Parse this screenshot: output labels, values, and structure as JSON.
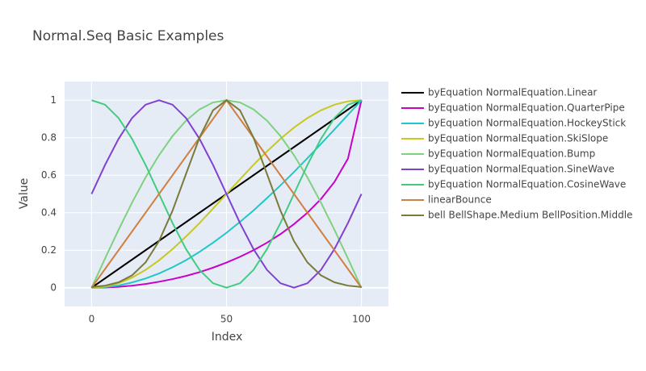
{
  "chart_data": {
    "type": "line",
    "title": "Normal.Seq Basic Examples",
    "x_label": "Index",
    "y_label": "Value",
    "x": [
      0,
      5,
      10,
      15,
      20,
      25,
      30,
      35,
      40,
      45,
      50,
      55,
      60,
      65,
      70,
      75,
      80,
      85,
      90,
      95,
      100
    ],
    "series": [
      {
        "name": "byEquation NormalEquation.Linear",
        "color": "#000000",
        "values": [
          0,
          0.05,
          0.1,
          0.15,
          0.2,
          0.25,
          0.3,
          0.35,
          0.4,
          0.45,
          0.5,
          0.55,
          0.6,
          0.65,
          0.7,
          0.75,
          0.8,
          0.85,
          0.9,
          0.95,
          1
        ]
      },
      {
        "name": "byEquation NormalEquation.QuarterPipe",
        "color": "#c800c8",
        "values": [
          0,
          0.001,
          0.005,
          0.011,
          0.02,
          0.032,
          0.046,
          0.063,
          0.083,
          0.107,
          0.134,
          0.165,
          0.2,
          0.24,
          0.286,
          0.339,
          0.4,
          0.473,
          0.564,
          0.688,
          1
        ]
      },
      {
        "name": "byEquation NormalEquation.HockeyStick",
        "color": "#1ec8c8",
        "values": [
          0,
          0.003,
          0.012,
          0.028,
          0.049,
          0.076,
          0.109,
          0.147,
          0.191,
          0.24,
          0.293,
          0.351,
          0.412,
          0.478,
          0.546,
          0.617,
          0.691,
          0.767,
          0.844,
          0.922,
          1
        ]
      },
      {
        "name": "byEquation NormalEquation.SkiSlope",
        "color": "#c8c81e",
        "values": [
          0,
          0.006,
          0.024,
          0.054,
          0.095,
          0.146,
          0.206,
          0.273,
          0.345,
          0.422,
          0.5,
          0.578,
          0.655,
          0.727,
          0.794,
          0.854,
          0.905,
          0.946,
          0.976,
          0.994,
          1
        ]
      },
      {
        "name": "byEquation NormalEquation.Bump",
        "color": "#7fd17f",
        "values": [
          0,
          0.156,
          0.309,
          0.454,
          0.588,
          0.707,
          0.809,
          0.891,
          0.951,
          0.988,
          1,
          0.988,
          0.951,
          0.891,
          0.809,
          0.707,
          0.588,
          0.454,
          0.309,
          0.156,
          0
        ]
      },
      {
        "name": "byEquation NormalEquation.SineWave",
        "color": "#8040d0",
        "values": [
          0.5,
          0.655,
          0.794,
          0.905,
          0.976,
          1,
          0.976,
          0.905,
          0.794,
          0.655,
          0.5,
          0.345,
          0.206,
          0.095,
          0.024,
          0,
          0.024,
          0.095,
          0.206,
          0.345,
          0.5
        ]
      },
      {
        "name": "byEquation NormalEquation.CosineWave",
        "color": "#40cc80",
        "values": [
          1,
          0.976,
          0.905,
          0.794,
          0.655,
          0.5,
          0.345,
          0.206,
          0.095,
          0.024,
          0,
          0.024,
          0.095,
          0.206,
          0.345,
          0.5,
          0.655,
          0.794,
          0.905,
          0.976,
          1
        ]
      },
      {
        "name": "linearBounce",
        "color": "#d08040",
        "values": [
          0,
          0.1,
          0.2,
          0.3,
          0.4,
          0.5,
          0.6,
          0.7,
          0.8,
          0.9,
          1,
          0.9,
          0.8,
          0.7,
          0.6,
          0.5,
          0.4,
          0.3,
          0.2,
          0.1,
          0
        ]
      },
      {
        "name": "bell BellShape.Medium BellPosition.Middle",
        "color": "#7a7a3a",
        "values": [
          0.004,
          0.011,
          0.029,
          0.066,
          0.135,
          0.249,
          0.411,
          0.607,
          0.801,
          0.946,
          1,
          0.946,
          0.801,
          0.607,
          0.411,
          0.249,
          0.135,
          0.066,
          0.029,
          0.011,
          0.004
        ]
      }
    ],
    "xlim": [
      -10,
      110
    ],
    "xticks": [
      0,
      50,
      100
    ],
    "ylim": [
      -0.1,
      1.1
    ],
    "yticks": [
      0,
      0.2,
      0.4,
      0.6,
      0.8,
      1
    ],
    "grid": true
  }
}
